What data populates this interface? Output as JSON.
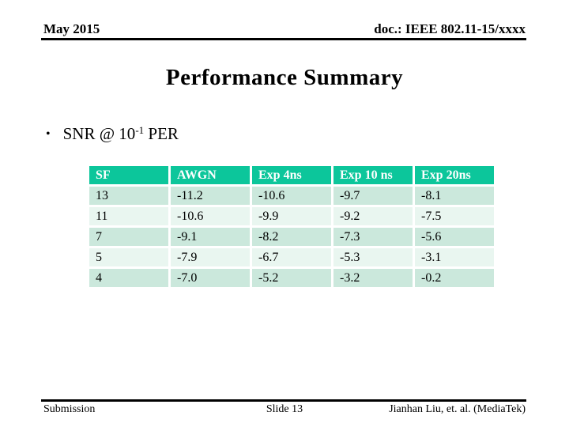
{
  "header": {
    "date": "May 2015",
    "doc": "doc.: IEEE 802.11-15/xxxx"
  },
  "title": "Performance Summary",
  "bullet": {
    "marker": "•",
    "text_before_sup": "SNR @ 10",
    "superscript": "-1",
    "text_after_sup": " PER"
  },
  "table": {
    "columns": [
      "SF",
      "AWGN",
      "Exp 4ns",
      "Exp 10 ns",
      "Exp 20ns"
    ],
    "rows": [
      [
        "13",
        "-11.2",
        "-10.6",
        "-9.7",
        "-8.1"
      ],
      [
        "11",
        "-10.6",
        "-9.9",
        "-9.2",
        "-7.5"
      ],
      [
        "7",
        "-9.1",
        "-8.2",
        "-7.3",
        "-5.6"
      ],
      [
        "5",
        "-7.9",
        "-6.7",
        "-5.3",
        "-3.1"
      ],
      [
        "4",
        "-7.0",
        "-5.2",
        "-3.2",
        "-0.2"
      ]
    ]
  },
  "footer": {
    "left": "Submission",
    "center": "Slide 13",
    "right": "Jianhan Liu, et. al. (MediaTek)"
  },
  "colors": {
    "table_header_bg": "#0cc69b",
    "table_header_text": "#ffffff",
    "row_shade_dark": "#cbe8dc",
    "row_shade_light": "#e9f6f0",
    "text": "#000000",
    "background": "#ffffff"
  }
}
